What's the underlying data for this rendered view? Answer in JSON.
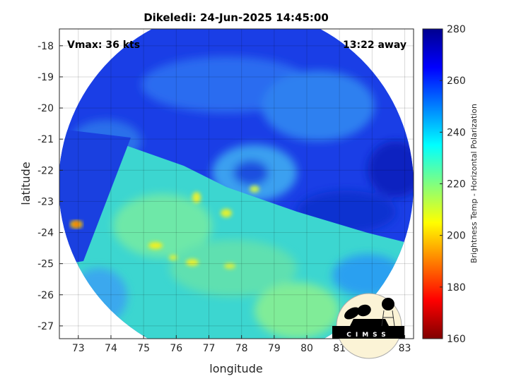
{
  "title": "Dikeledi: 24-Jun-2025 14:45:00",
  "annotations": {
    "vmax": "Vmax: 36 kts",
    "time_away": "13:22 away"
  },
  "map": {
    "xlabel": "longitude",
    "ylabel": "latitude",
    "xlim": [
      72.42,
      83.27
    ],
    "ylim": [
      -27.41,
      -17.46
    ],
    "xticks": [
      "73",
      "74",
      "75",
      "76",
      "77",
      "78",
      "79",
      "80",
      "81",
      "82",
      "83"
    ],
    "yticks": [
      "-18",
      "-19",
      "-20",
      "-21",
      "-22",
      "-23",
      "-24",
      "-25",
      "-26",
      "-27"
    ],
    "grid": true
  },
  "colorbar": {
    "label": "Brightness Temp - Horizontal Polarization",
    "range": [
      160,
      280
    ],
    "ticks": [
      "160",
      "180",
      "200",
      "220",
      "240",
      "260",
      "280"
    ],
    "colormap": "jet"
  },
  "logo": {
    "text": "CIMSS"
  }
}
